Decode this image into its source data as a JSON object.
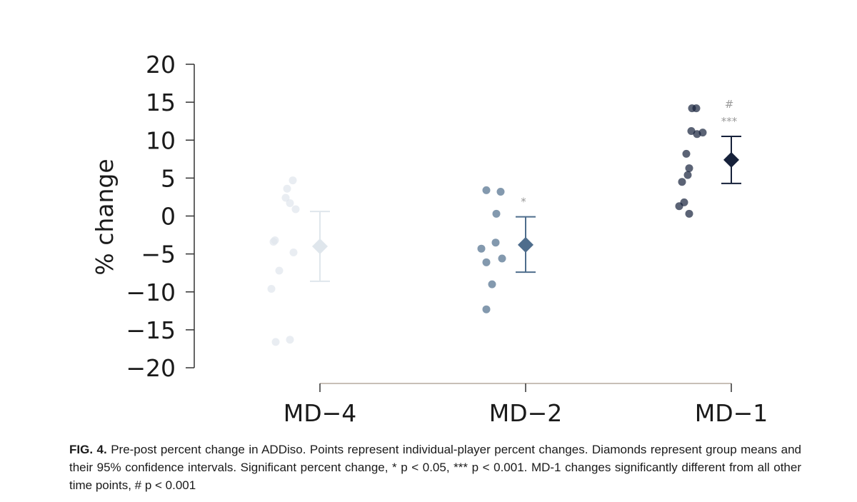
{
  "chart_data": {
    "type": "scatter",
    "ylabel": "% change",
    "xlabel": "",
    "ylim": [
      -20,
      20
    ],
    "yticks": [
      20,
      15,
      10,
      5,
      0,
      -5,
      -10,
      -15,
      -20
    ],
    "ytick_labels": [
      "20",
      "15",
      "10",
      "5",
      "0",
      "−5",
      "−10",
      "−15",
      "−20"
    ],
    "categories": [
      "MD−4",
      "MD−2",
      "MD−1"
    ],
    "grid": false,
    "series": [
      {
        "category": "MD−4",
        "color": "#dfe6ec",
        "points": [
          4.7,
          3.6,
          2.4,
          1.7,
          0.9,
          -3.2,
          -3.4,
          -4.8,
          -7.2,
          -9.6,
          -16.3,
          -16.6
        ],
        "mean": -4.0,
        "ci": [
          -8.6,
          0.6
        ],
        "significance": []
      },
      {
        "category": "MD−2",
        "color": "#4e6d8c",
        "points": [
          3.4,
          3.2,
          0.3,
          -3.5,
          -4.3,
          -5.6,
          -6.1,
          -9.0,
          -12.3
        ],
        "mean": -3.8,
        "ci": [
          -7.4,
          -0.1
        ],
        "significance": [
          "*"
        ]
      },
      {
        "category": "MD−1",
        "color": "#16213a",
        "points": [
          14.2,
          14.2,
          11.2,
          11.0,
          10.8,
          8.2,
          6.3,
          5.4,
          4.5,
          1.8,
          1.3,
          0.3
        ],
        "mean": 7.4,
        "ci": [
          4.3,
          10.5
        ],
        "significance": [
          "#",
          "***"
        ]
      }
    ]
  },
  "caption": {
    "label": "FIG. 4.",
    "text": " Pre-post percent change in ADDiso. Points represent individual-player percent changes. Diamonds represent group means and their 95% confidence intervals. Significant percent change, * p < 0.05, *** p < 0.001. MD-1 changes significantly different from all other time points, # p < 0.001"
  }
}
